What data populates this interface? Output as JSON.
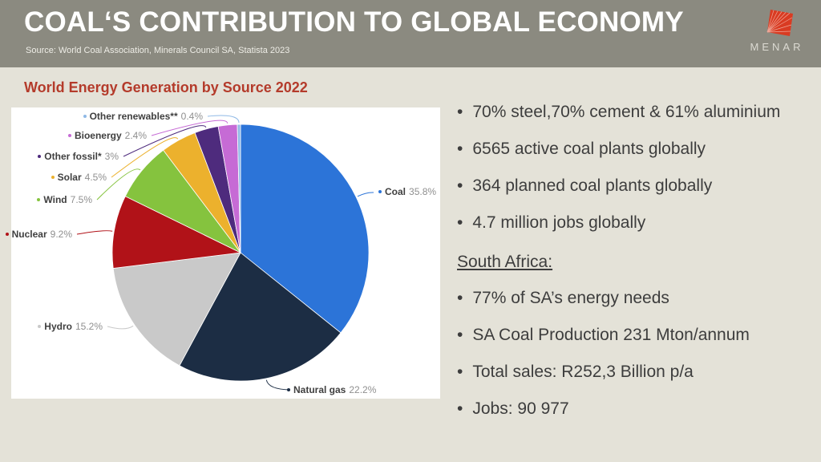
{
  "header": {
    "title": "COAL‘S CONTRIBUTION TO GLOBAL ECONOMY",
    "source": "Source: World Coal Association, Minerals Council SA, Statista 2023",
    "logo_text": "MENAR",
    "logo_color": "#d93b22",
    "bar_color": "#8b8a80"
  },
  "chart_data": {
    "type": "pie",
    "title": "World Energy Generation by Source 2022",
    "title_color": "#b43b2b",
    "unit": "%",
    "legend_position": "callout-labels",
    "slices": [
      {
        "label": "Coal",
        "value": 35.8,
        "pct_label": "35.8%",
        "color": "#2c74d8"
      },
      {
        "label": "Natural gas",
        "value": 22.2,
        "pct_label": "22.2%",
        "color": "#1c2d44"
      },
      {
        "label": "Hydro",
        "value": 15.2,
        "pct_label": "15.2%",
        "color": "#c9c9c9"
      },
      {
        "label": "Nuclear",
        "value": 9.2,
        "pct_label": "9.2%",
        "color": "#b11218"
      },
      {
        "label": "Wind",
        "value": 7.5,
        "pct_label": "7.5%",
        "color": "#85c33e"
      },
      {
        "label": "Solar",
        "value": 4.5,
        "pct_label": "4.5%",
        "color": "#ecb12d"
      },
      {
        "label": "Other fossil*",
        "value": 3,
        "pct_label": "3%",
        "color": "#4e2b7d"
      },
      {
        "label": "Bioenergy",
        "value": 2.4,
        "pct_label": "2.4%",
        "color": "#c66bd5"
      },
      {
        "label": "Other renewables**",
        "value": 0.4,
        "pct_label": "0.4%",
        "color": "#8fb9e6"
      }
    ]
  },
  "right_panel": {
    "bullets_global": [
      "70% steel,70% cement & 61% aluminium",
      "6565 active coal plants globally",
      "364 planned coal plants globally",
      "4.7 million jobs globally"
    ],
    "section_heading": "South Africa:",
    "bullets_sa": [
      "77% of SA’s energy needs",
      "SA Coal Production 231 Mton/annum",
      "Total sales: R252,3 Billion p/a",
      "Jobs: 90 977"
    ]
  },
  "colors": {
    "slide_background": "#e4e2d8",
    "panel_background": "#ffffff",
    "body_text": "#3d3d3d"
  }
}
